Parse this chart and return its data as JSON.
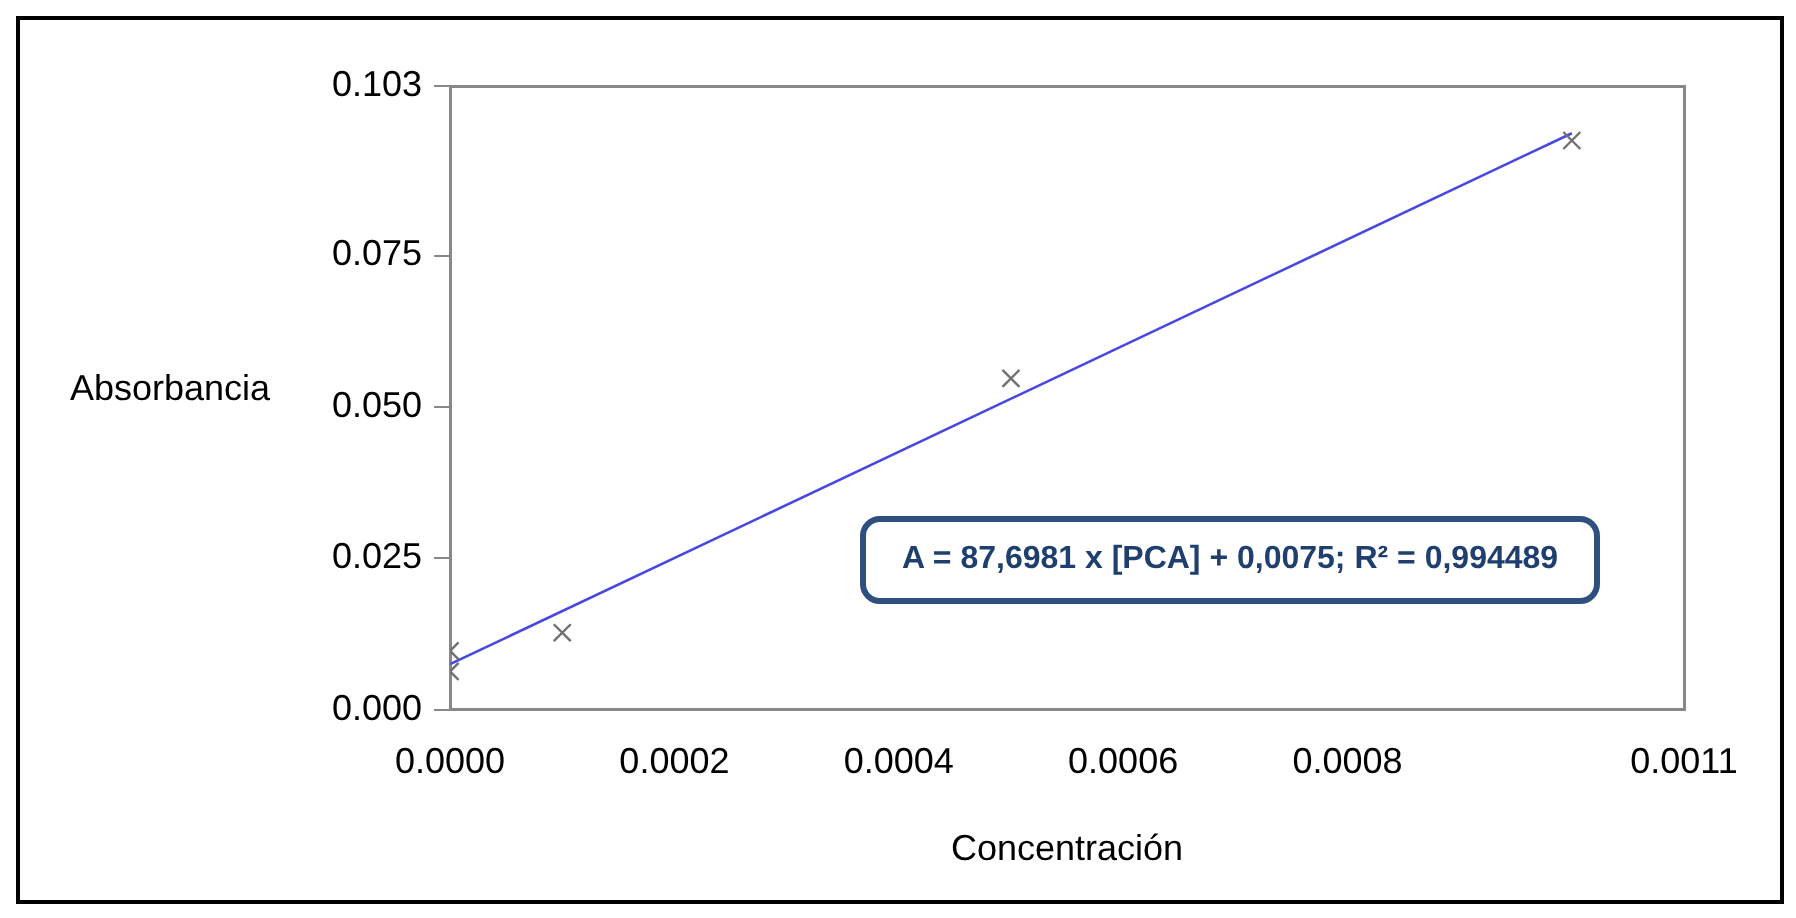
{
  "chart_data": {
    "type": "scatter",
    "xlabel": "Concentración",
    "ylabel": "Absorbancia",
    "series": [
      {
        "type": "scatter",
        "color": "#707070",
        "marker": "cross",
        "x": [
          0,
          0,
          0.0001,
          0.0005,
          0.001
        ],
        "values": [
          0.0097,
          0.0063,
          0.0127,
          0.0547,
          0.094
        ]
      },
      {
        "type": "line",
        "color": "#4848e0",
        "marker": "none",
        "line_style": "solid",
        "x": [
          0,
          0.001
        ],
        "values": [
          0.0075,
          0.0952
        ]
      }
    ],
    "xlim": [
      0,
      0.0011
    ],
    "xticks": [
      {
        "value": 0,
        "label": "0.0000"
      },
      {
        "value": 0.0002,
        "label": "0.0002"
      },
      {
        "value": 0.0004,
        "label": "0.0004"
      },
      {
        "value": 0.0006,
        "label": "0.0006"
      },
      {
        "value": 0.0008,
        "label": "0.0008"
      },
      {
        "value": 0.0011,
        "label": "0.0011"
      }
    ],
    "ylim": [
      0,
      0.103
    ],
    "yticks": [
      {
        "value": 0,
        "label": "0.000"
      },
      {
        "value": 0.025,
        "label": "0.025"
      },
      {
        "value": 0.05,
        "label": "0.050"
      },
      {
        "value": 0.075,
        "label": "0.075"
      },
      {
        "value": 0.103,
        "label": "0.103"
      }
    ],
    "grid": false,
    "legend": false,
    "annotations": [
      "A = 87,6981 x [PCA] + 0,0075; R² = 0,994489"
    ]
  }
}
